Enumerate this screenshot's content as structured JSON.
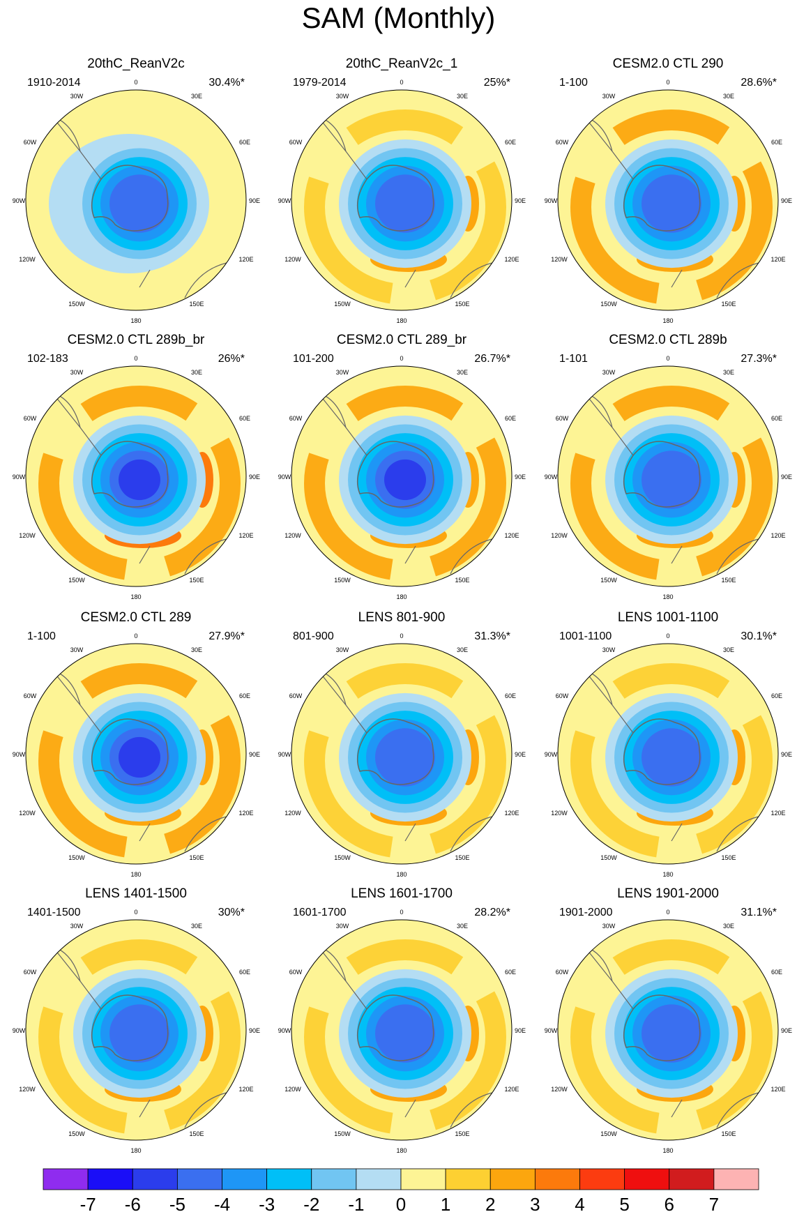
{
  "figure": {
    "title": "SAM (Monthly)"
  },
  "colors": {
    "levels": [
      "#8f2cef",
      "#1a0ef7",
      "#2b3dec",
      "#3a6ff0",
      "#1e96f6",
      "#00bff7",
      "#71c5f2",
      "#b4ddf3",
      "#fdf495",
      "#fdd032",
      "#fca60e",
      "#fc7a0c",
      "#fc3c10",
      "#ef0f0f",
      "#d11c1e",
      "#fdb3b3"
    ],
    "coastline": "#666666"
  },
  "colorbar": {
    "labels": [
      "-7",
      "-6",
      "-5",
      "-4",
      "-3",
      "-2",
      "-1",
      "0",
      "1",
      "2",
      "3",
      "4",
      "5",
      "6",
      "7"
    ]
  },
  "lon_labels": {
    "top": "0",
    "bottom": "180",
    "left": "90W",
    "right": "90E",
    "upper_left": "30W",
    "upper_right": "30E",
    "mid_upper_left": "60W",
    "mid_upper_right": "60E",
    "mid_lower_left": "120W",
    "mid_lower_right": "120E",
    "lower_left": "150W",
    "lower_right": "150E"
  },
  "panels": [
    {
      "title": "20thC_ReanV2c",
      "period": "1910-2014",
      "variance": "30.4%*",
      "center_value": -4.5,
      "ring_value": -1.0,
      "outer_value": 0.5
    },
    {
      "title": "20thC_ReanV2c_1",
      "period": "1979-2014",
      "variance": "25%*",
      "center_value": -4.3,
      "ring_value": 1.4,
      "outer_value": 0.4
    },
    {
      "title": "CESM2.0 CTL 290",
      "period": "1-100",
      "variance": "28.6%*",
      "center_value": -5.0,
      "ring_value": 2.0,
      "outer_value": 0.5
    },
    {
      "title": "CESM2.0 CTL 289b_br",
      "period": "102-183",
      "variance": "26%*",
      "center_value": -5.2,
      "ring_value": 2.2,
      "outer_value": 0.5
    },
    {
      "title": "CESM2.0 CTL 289_br",
      "period": "101-200",
      "variance": "26.7%*",
      "center_value": -5.3,
      "ring_value": 2.0,
      "outer_value": 0.5
    },
    {
      "title": "CESM2.0 CTL 289b",
      "period": "1-101",
      "variance": "27.3%*",
      "center_value": -5.0,
      "ring_value": 2.0,
      "outer_value": 0.5
    },
    {
      "title": "CESM2.0 CTL 289",
      "period": "1-100",
      "variance": "27.9%*",
      "center_value": -5.2,
      "ring_value": 2.1,
      "outer_value": 0.5
    },
    {
      "title": "LENS 801-900",
      "period": "801-900",
      "variance": "31.3%*",
      "center_value": -5.0,
      "ring_value": 1.8,
      "outer_value": 0.5
    },
    {
      "title": "LENS 1001-1100",
      "period": "1001-1100",
      "variance": "30.1%*",
      "center_value": -5.0,
      "ring_value": 1.8,
      "outer_value": 0.5
    },
    {
      "title": "LENS 1401-1500",
      "period": "1401-1500",
      "variance": "30%*",
      "center_value": -4.9,
      "ring_value": 1.8,
      "outer_value": 0.5
    },
    {
      "title": "LENS 1601-1700",
      "period": "1601-1700",
      "variance": "28.2%*",
      "center_value": -4.9,
      "ring_value": 1.7,
      "outer_value": 0.5
    },
    {
      "title": "LENS 1901-2000",
      "period": "1901-2000",
      "variance": "31.1%*",
      "center_value": -4.9,
      "ring_value": 1.8,
      "outer_value": 0.5
    }
  ]
}
